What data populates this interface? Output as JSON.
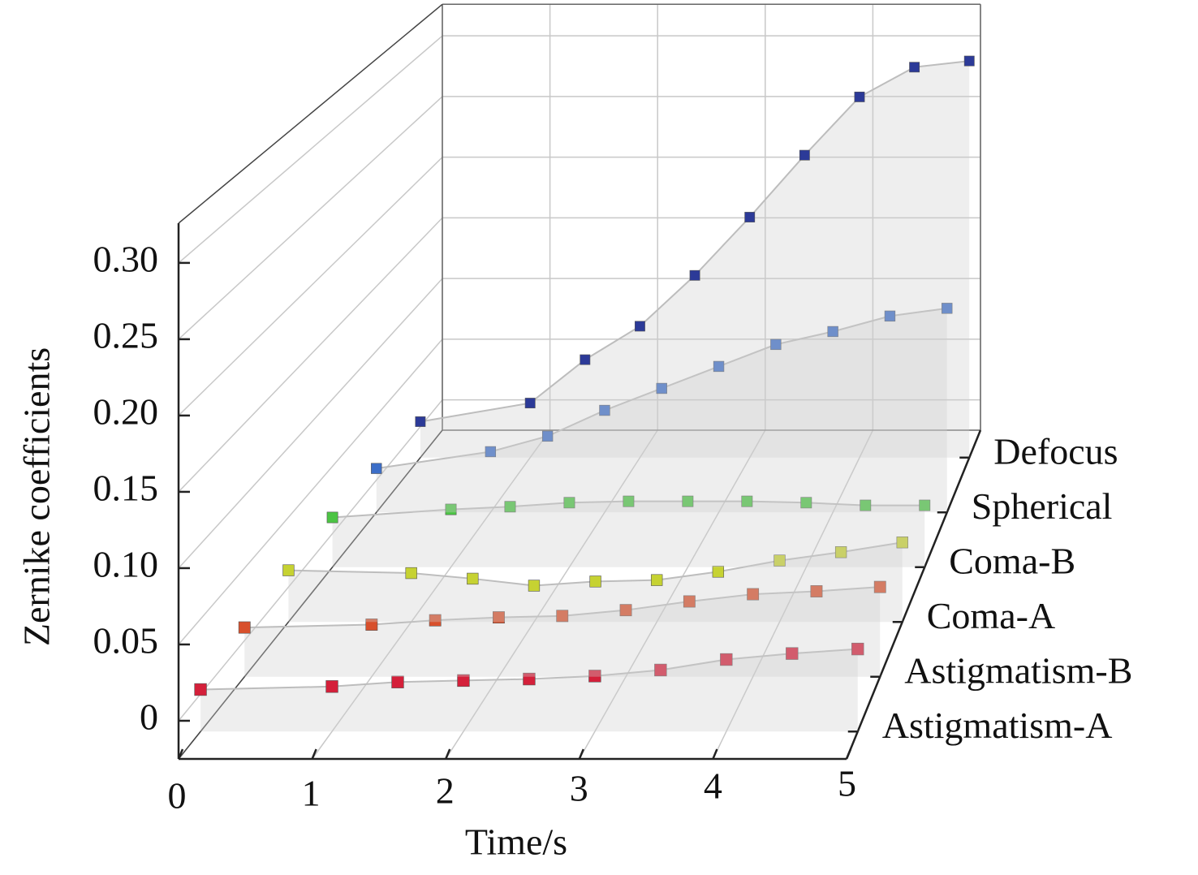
{
  "chart_data": {
    "type": "line3d",
    "x_label": "Time/s",
    "y_label": "Zernike coefficients",
    "x": [
      0,
      1,
      1.5,
      2,
      2.5,
      3,
      3.5,
      4,
      4.5,
      5
    ],
    "xlim": [
      0,
      5
    ],
    "xticks": [
      0,
      1,
      2,
      3,
      4,
      5
    ],
    "ylim": [
      -0.025,
      0.326
    ],
    "yticks": [
      0,
      0.05,
      {
        "value": 0.1,
        "label": "0.10"
      },
      0.15,
      {
        "value": 0.2,
        "label": "0.20"
      },
      0.25,
      {
        "value": 0.3,
        "label": "0.30"
      }
    ],
    "grid": true,
    "series": [
      {
        "name": "Astigmatism-A",
        "color": "#d4203a",
        "values": [
          0.003,
          0.005,
          0.008,
          0.009,
          0.01,
          0.012,
          0.016,
          0.023,
          0.027,
          0.03
        ]
      },
      {
        "name": "Astigmatism-B",
        "color": "#d8502c",
        "values": [
          0.009,
          0.011,
          0.014,
          0.016,
          0.017,
          0.021,
          0.027,
          0.032,
          0.034,
          0.037
        ]
      },
      {
        "name": "Coma-A",
        "color": "#c6d232",
        "values": [
          0.012,
          0.01,
          0.006,
          0.001,
          0.004,
          0.005,
          0.011,
          0.019,
          0.025,
          0.032
        ]
      },
      {
        "name": "Coma-B",
        "color": "#4cc444",
        "values": [
          0.012,
          0.018,
          0.02,
          0.023,
          0.024,
          0.024,
          0.024,
          0.023,
          0.021,
          0.021
        ]
      },
      {
        "name": "Spherical",
        "color": "#3c6ec8",
        "values": [
          0.009,
          0.022,
          0.034,
          0.054,
          0.071,
          0.088,
          0.105,
          0.115,
          0.127,
          0.133
        ]
      },
      {
        "name": "Defocus",
        "color": "#2c3a98",
        "values": [
          0.004,
          0.019,
          0.054,
          0.081,
          0.122,
          0.169,
          0.219,
          0.266,
          0.29,
          0.295
        ]
      }
    ]
  }
}
